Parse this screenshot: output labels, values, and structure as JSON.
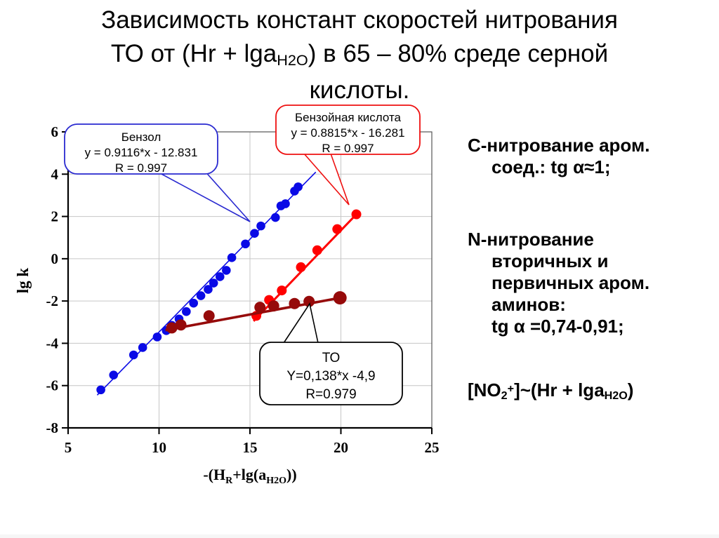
{
  "slide": {
    "title_lines": [
      [
        {
          "t": "Зависимость констант скоростей нитрования"
        }
      ],
      [
        {
          "t": "ТО от (Hr + lga"
        },
        {
          "t": "H2O",
          "sub": true
        },
        {
          "t": ") в 65 – 80% среде серной"
        }
      ],
      [
        {
          "t": "кислоты."
        }
      ]
    ],
    "notes": [
      {
        "lines": [
          {
            "indent": false,
            "segs": [
              {
                "t": "С-нитрование аром."
              }
            ]
          },
          {
            "indent": true,
            "segs": [
              {
                "t": "соед.: tg α≈1;"
              }
            ]
          }
        ]
      },
      {
        "lines": [
          {
            "indent": false,
            "segs": [
              {
                "t": "N-нитрование"
              }
            ]
          },
          {
            "indent": true,
            "segs": [
              {
                "t": "вторичных и"
              }
            ]
          },
          {
            "indent": true,
            "segs": [
              {
                "t": "первичных аром."
              }
            ]
          },
          {
            "indent": true,
            "segs": [
              {
                "t": "аминов:"
              }
            ]
          },
          {
            "indent": true,
            "segs": [
              {
                "t": "tg α =0,74-0,91;"
              }
            ]
          }
        ]
      },
      {
        "lines": [
          {
            "indent": false,
            "segs": [
              {
                "t": "[NO"
              },
              {
                "t": "2",
                "sub": true
              },
              {
                "t": "+",
                "sup": true
              },
              {
                "t": "]~(Hr + lga"
              },
              {
                "t": "H2O",
                "sub": true
              },
              {
                "t": ")"
              }
            ]
          }
        ]
      }
    ]
  },
  "chart_data": {
    "type": "scatter",
    "title": "",
    "ylabel": "lg k",
    "xlabel_segments": [
      {
        "t": "-(H"
      },
      {
        "t": "R",
        "sub": true
      },
      {
        "t": "+lg(a"
      },
      {
        "t": "H2O",
        "sub": true
      },
      {
        "t": "))"
      }
    ],
    "xlim": [
      5,
      25
    ],
    "ylim": [
      -8,
      6
    ],
    "xticks": [
      5,
      10,
      15,
      20,
      25
    ],
    "yticks": [
      6,
      4,
      2,
      0,
      -2,
      -4,
      -6,
      -8
    ],
    "grid": true,
    "grid_color": "#c6c6c6",
    "series": [
      {
        "name": "Бензол",
        "equation": "y = 0.9116*x - 12.831",
        "R": "R = 0.997",
        "color": "#0a0ae6",
        "marker_r": 6.3,
        "line_width": 1.6,
        "trend": [
          [
            6.6,
            -6.45
          ],
          [
            18.62,
            4.1
          ]
        ],
        "points": [
          [
            6.8,
            -6.2
          ],
          [
            7.5,
            -5.5
          ],
          [
            8.6,
            -4.55
          ],
          [
            9.1,
            -4.2
          ],
          [
            9.9,
            -3.7
          ],
          [
            10.4,
            -3.4
          ],
          [
            10.7,
            -3.15
          ],
          [
            11.1,
            -2.85
          ],
          [
            11.5,
            -2.5
          ],
          [
            11.9,
            -2.1
          ],
          [
            12.3,
            -1.75
          ],
          [
            12.7,
            -1.45
          ],
          [
            13.0,
            -1.15
          ],
          [
            13.35,
            -0.85
          ],
          [
            13.7,
            -0.55
          ],
          [
            14.0,
            0.05
          ],
          [
            14.75,
            0.7
          ],
          [
            15.25,
            1.2
          ],
          [
            15.6,
            1.55
          ],
          [
            16.4,
            1.95
          ],
          [
            16.7,
            2.5
          ],
          [
            16.95,
            2.6
          ],
          [
            17.45,
            3.2
          ],
          [
            17.65,
            3.4
          ]
        ]
      },
      {
        "name": "Бензойная кислота",
        "equation": "y = 0.8815*x - 16.281",
        "R": "R = 0.997",
        "color": "#ff0000",
        "marker_r": 7,
        "line_width": 3,
        "trend": [
          [
            15.2,
            -2.95
          ],
          [
            20.85,
            2.1
          ]
        ],
        "points": [
          [
            15.35,
            -2.7
          ],
          [
            16.05,
            -1.95
          ],
          [
            16.75,
            -1.5
          ],
          [
            17.8,
            -0.4
          ],
          [
            18.7,
            0.4
          ],
          [
            19.8,
            1.4
          ],
          [
            20.85,
            2.1
          ]
        ]
      },
      {
        "name": "ТО",
        "equation": "Y=0,138*x -4,9",
        "R": "R=0.979",
        "color": "#960a0a",
        "marker_r": 8,
        "line_width": 3.6,
        "trend": [
          [
            10.35,
            -3.38
          ],
          [
            19.95,
            -1.85
          ]
        ],
        "points": [
          [
            10.7,
            -3.27
          ],
          [
            11.2,
            -3.13
          ],
          [
            12.75,
            -2.7
          ],
          [
            15.55,
            -2.3
          ],
          [
            16.3,
            -2.23
          ],
          [
            17.45,
            -2.12
          ],
          [
            18.25,
            -2.02
          ],
          [
            19.95,
            -1.85,
            9.5
          ]
        ]
      }
    ],
    "callouts": [
      {
        "series": "Бензол",
        "border": "#2a2ad0",
        "lines": [
          "Бензол",
          "y = 0.9116*x - 12.831",
          "R = 0.997"
        ]
      },
      {
        "series": "Бензойная кислота",
        "border": "#ee1111",
        "lines": [
          "Бензойная кислота",
          "y = 0.8815*x - 16.281",
          "R = 0.997"
        ]
      },
      {
        "series": "ТО",
        "border": "#000000",
        "lines": [
          "ТО",
          "Y=0,138*x -4,9",
          "R=0.979"
        ]
      }
    ]
  }
}
